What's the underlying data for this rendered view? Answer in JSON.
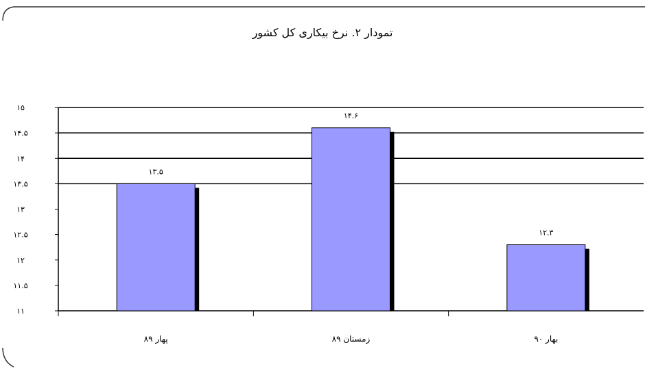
{
  "chart_data": {
    "type": "bar",
    "title": "تمودار ۲. نرخ بیکاری کل کشور",
    "categories": [
      "پهار ۸۹",
      "زمستان ۸۹",
      "بهار ۹۰"
    ],
    "values": [
      13.5,
      14.6,
      12.3
    ],
    "value_labels": [
      "۱۳.۵",
      "۱۴.۶",
      "۱۲.۳"
    ],
    "y_ticks": [
      {
        "value": 11,
        "label": "۱۱"
      },
      {
        "value": 11.5,
        "label": "۱۱.۵"
      },
      {
        "value": 12,
        "label": "۱۲"
      },
      {
        "value": 12.5,
        "label": "۱۲.۵"
      },
      {
        "value": 13,
        "label": "۱۳"
      },
      {
        "value": 13.5,
        "label": "۱۳.۵"
      },
      {
        "value": 14,
        "label": "۱۴"
      },
      {
        "value": 14.5,
        "label": "۱۴.۵"
      },
      {
        "value": 15,
        "label": "۱۵"
      }
    ],
    "ylim": [
      11,
      15
    ],
    "grid": true,
    "xlabel": "",
    "ylabel": "",
    "colors": {
      "bar": "#9999ff",
      "bar_shadow": "#000000",
      "grid": "#000000",
      "frame": "#333333"
    }
  }
}
